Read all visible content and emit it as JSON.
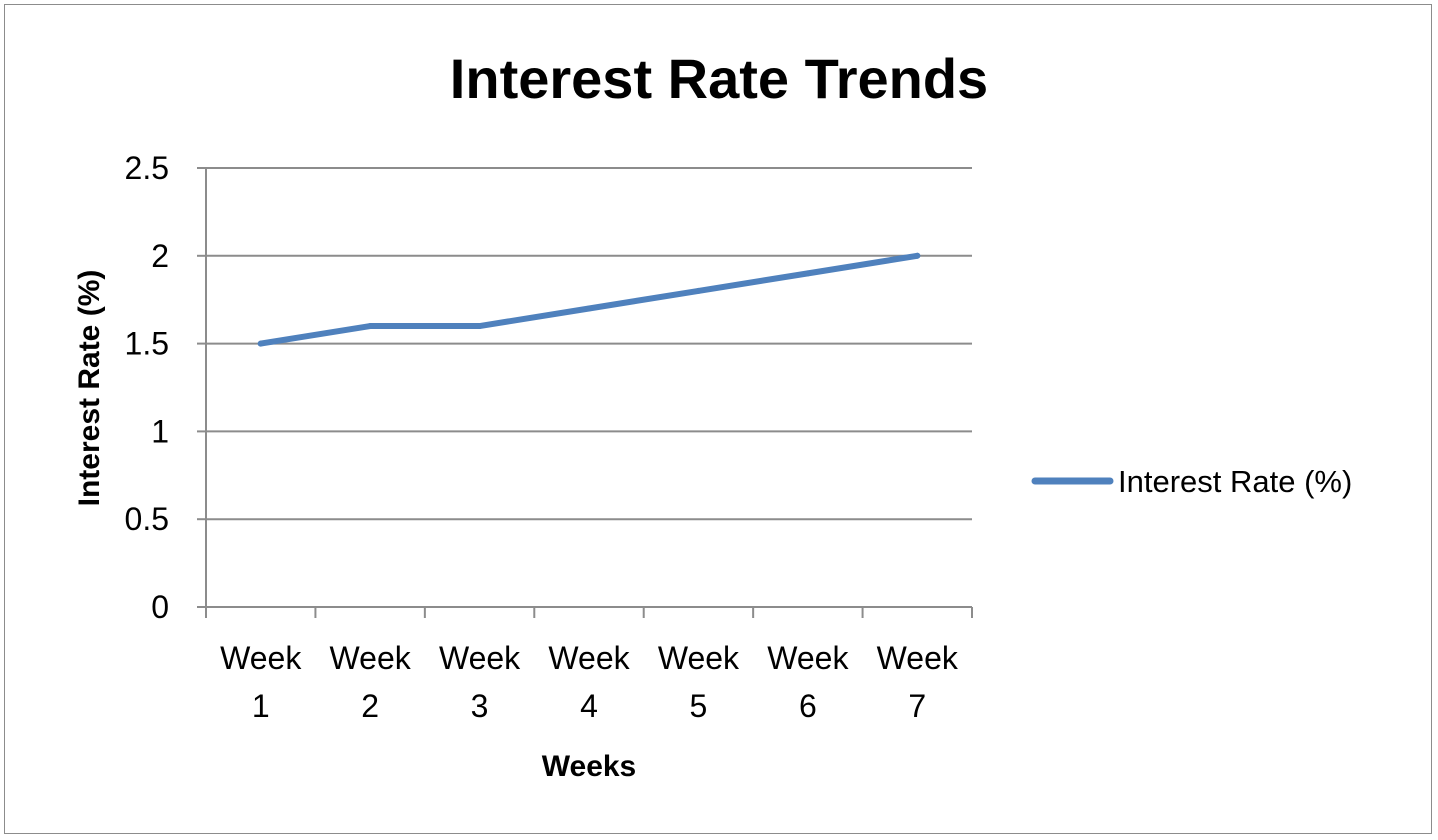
{
  "chart_data": {
    "type": "line",
    "title": "Interest Rate Trends",
    "xlabel": "Weeks",
    "ylabel": "Interest Rate (%)",
    "categories": [
      [
        "Week",
        "1"
      ],
      [
        "Week",
        "2"
      ],
      [
        "Week",
        "3"
      ],
      [
        "Week",
        "4"
      ],
      [
        "Week",
        "5"
      ],
      [
        "Week",
        "6"
      ],
      [
        "Week",
        "7"
      ]
    ],
    "y_ticks": [
      "0",
      "0.5",
      "1",
      "1.5",
      "2",
      "2.5"
    ],
    "ylim": [
      0,
      2.5
    ],
    "grid": true,
    "legend_position": "right",
    "series": [
      {
        "name": "Interest Rate (%)",
        "color": "#4f81bd",
        "values": [
          1.5,
          1.6,
          1.6,
          1.7,
          1.8,
          1.9,
          2.0
        ]
      }
    ]
  }
}
